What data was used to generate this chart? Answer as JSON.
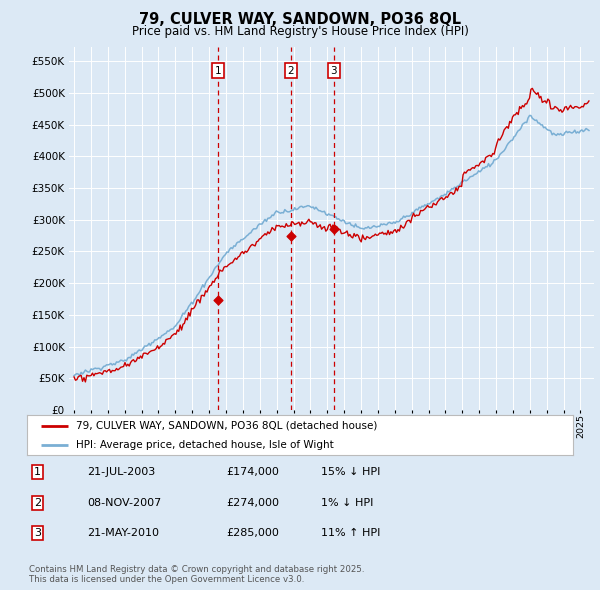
{
  "title": "79, CULVER WAY, SANDOWN, PO36 8QL",
  "subtitle": "Price paid vs. HM Land Registry's House Price Index (HPI)",
  "bg_color": "#dce9f5",
  "legend_line1": "79, CULVER WAY, SANDOWN, PO36 8QL (detached house)",
  "legend_line2": "HPI: Average price, detached house, Isle of Wight",
  "sale_color": "#cc0000",
  "hpi_color": "#7aafd4",
  "sales": [
    {
      "date_num": 2003.55,
      "price": 174000,
      "label": "1"
    },
    {
      "date_num": 2007.85,
      "price": 274000,
      "label": "2"
    },
    {
      "date_num": 2010.38,
      "price": 285000,
      "label": "3"
    }
  ],
  "table_rows": [
    {
      "num": "1",
      "date": "21-JUL-2003",
      "price": "£174,000",
      "hpi": "15% ↓ HPI"
    },
    {
      "num": "2",
      "date": "08-NOV-2007",
      "price": "£274,000",
      "hpi": "1% ↓ HPI"
    },
    {
      "num": "3",
      "date": "21-MAY-2010",
      "price": "£285,000",
      "hpi": "11% ↑ HPI"
    }
  ],
  "footnote": "Contains HM Land Registry data © Crown copyright and database right 2025.\nThis data is licensed under the Open Government Licence v3.0."
}
